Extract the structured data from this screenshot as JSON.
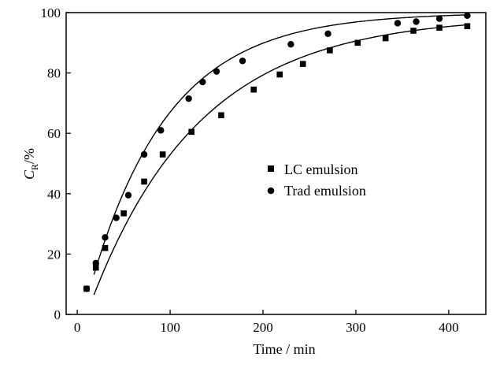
{
  "chart_data": {
    "type": "scatter",
    "xlabel": "Time / min",
    "ylabel": {
      "main": "C",
      "sub": "R",
      "suffix": "/%"
    },
    "xlim": [
      -12,
      440
    ],
    "ylim": [
      0,
      100
    ],
    "xticks": [
      0,
      100,
      200,
      300,
      400
    ],
    "yticks": [
      0,
      20,
      40,
      60,
      80,
      100
    ],
    "grid": false,
    "legend_position": "center-right",
    "series": [
      {
        "name": "LC emulsion",
        "marker": "square",
        "color": "#000000",
        "x": [
          10,
          20,
          30,
          50,
          72,
          92,
          123,
          155,
          190,
          218,
          243,
          272,
          302,
          332,
          362,
          390,
          420
        ],
        "y": [
          8.5,
          15.5,
          22,
          33.5,
          44,
          53,
          60.5,
          66,
          74.5,
          79.5,
          83,
          87.5,
          90,
          91.5,
          94,
          95,
          95.5
        ],
        "fit": {
          "a": 99,
          "k": 0.0085,
          "x0": 18
        }
      },
      {
        "name": "Trad emulsion",
        "marker": "circle",
        "color": "#000000",
        "x": [
          10,
          20,
          30,
          42,
          55,
          72,
          90,
          120,
          135,
          150,
          178,
          230,
          270,
          345,
          365,
          390,
          420
        ],
        "y": [
          8.5,
          17,
          25.5,
          32,
          39.5,
          53,
          61,
          71.5,
          77,
          80.5,
          84,
          89.5,
          93,
          96.5,
          97,
          98,
          99
        ],
        "fit": {
          "a": 100,
          "k": 0.0118,
          "x0": 14
        }
      }
    ]
  }
}
